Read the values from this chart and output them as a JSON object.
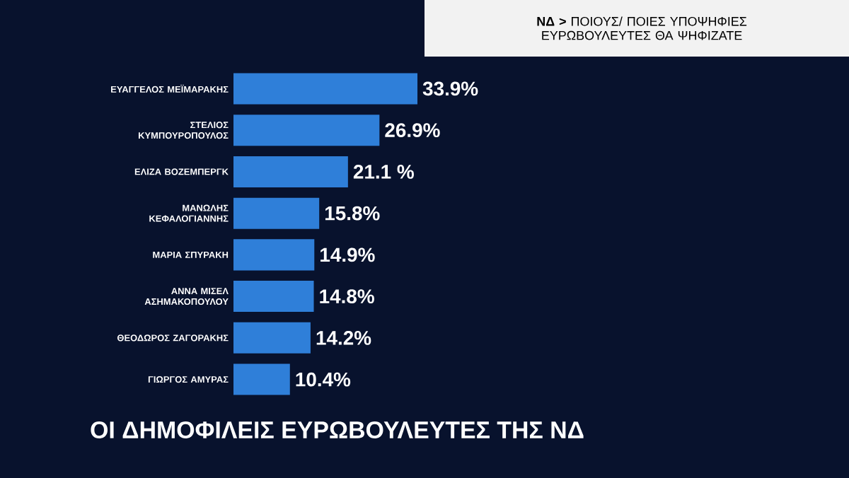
{
  "chart_data": {
    "type": "bar",
    "orientation": "horizontal",
    "title": "**ΝΔ >** ΠΟΙΟΥΣ/ ΠΟΙΕΣ ΥΠΟΨΗΦΙΕΣ ΕΥΡΩΒΟΥΛΕΥΤΕΣ ΘΑ ΨΗΦΙΖΑΤΕ",
    "categories": [
      "ΕΥΑΓΓΕΛΟΣ ΜΕΪΜΑΡΑΚΗΣ",
      "ΣΤΕΛΙΟΣ ΚΥΜΠΟΥΡΟΠΟΥΛΟΣ",
      "ΕΛΙΖΑ ΒΟΖΕΜΠΕΡΓΚ",
      "ΜΑΝΩΛΗΣ ΚΕΦΑΛΟΓΙΑΝΝΗΣ",
      "ΜΑΡΙΑ ΣΠΥΡΑΚΗ",
      "ΑΝΝΑ ΜΙΣΕΛ ΑΣΗΜΑΚΟΠΟΥΛΟΥ",
      "ΘΕΟΔΩΡΟΣ ΖΑΓΟΡΑΚΗΣ",
      "ΓΙΩΡΓΟΣ ΑΜΥΡΑΣ"
    ],
    "values": [
      33.9,
      26.9,
      21.1,
      15.8,
      14.9,
      14.8,
      14.2,
      10.4
    ],
    "value_labels": [
      "33.9%",
      "26.9%",
      "21.1 %",
      "15.8%",
      "14.9%",
      "14.8%",
      "14.2%",
      "10.4%"
    ],
    "color": "#2f7fd9",
    "annotations": [
      "ΟΙ ΔΗΜΟΦΙΛΕΙΣ ΕΥΡΩΒΟΥΛΕΥΤΕΣ ΤΗΣ ΝΔ"
    ]
  }
}
